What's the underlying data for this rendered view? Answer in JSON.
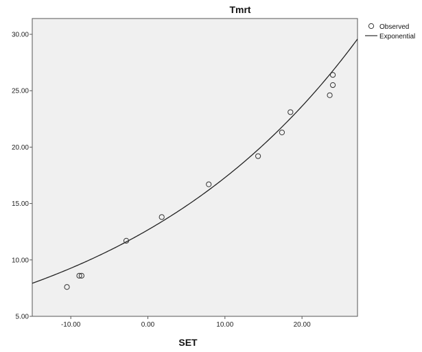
{
  "chart_data": {
    "type": "scatter",
    "title": "Tmrt",
    "xlabel": "SET",
    "ylabel": "",
    "xlim": [
      -15,
      27.2
    ],
    "ylim": [
      5,
      31.4
    ],
    "xticks": [
      -10,
      0,
      10,
      20
    ],
    "xtick_labels": [
      "-10.00",
      "0.00",
      "10.00",
      "20.00"
    ],
    "yticks": [
      5,
      10,
      15,
      20,
      25,
      30
    ],
    "ytick_labels": [
      "5.00",
      "10.00",
      "15.00",
      "20.00",
      "25.00",
      "30.00"
    ],
    "grid": false,
    "background": "#f0f0f0",
    "legend_position": "top-right outside",
    "series": [
      {
        "name": "Observed",
        "marker": "open-circle",
        "points": [
          {
            "x": -10.5,
            "y": 7.6
          },
          {
            "x": -8.9,
            "y": 8.6
          },
          {
            "x": -8.6,
            "y": 8.6
          },
          {
            "x": -2.8,
            "y": 11.7
          },
          {
            "x": 1.8,
            "y": 13.8
          },
          {
            "x": 7.9,
            "y": 16.7
          },
          {
            "x": 14.3,
            "y": 19.2
          },
          {
            "x": 17.4,
            "y": 21.3
          },
          {
            "x": 18.5,
            "y": 23.1
          },
          {
            "x": 23.6,
            "y": 24.6
          },
          {
            "x": 24.0,
            "y": 26.4
          },
          {
            "x": 24.0,
            "y": 25.5
          }
        ]
      },
      {
        "name": "Exponential",
        "style": "line",
        "model": {
          "a": 12.66,
          "b": 0.0312
        }
      }
    ]
  }
}
